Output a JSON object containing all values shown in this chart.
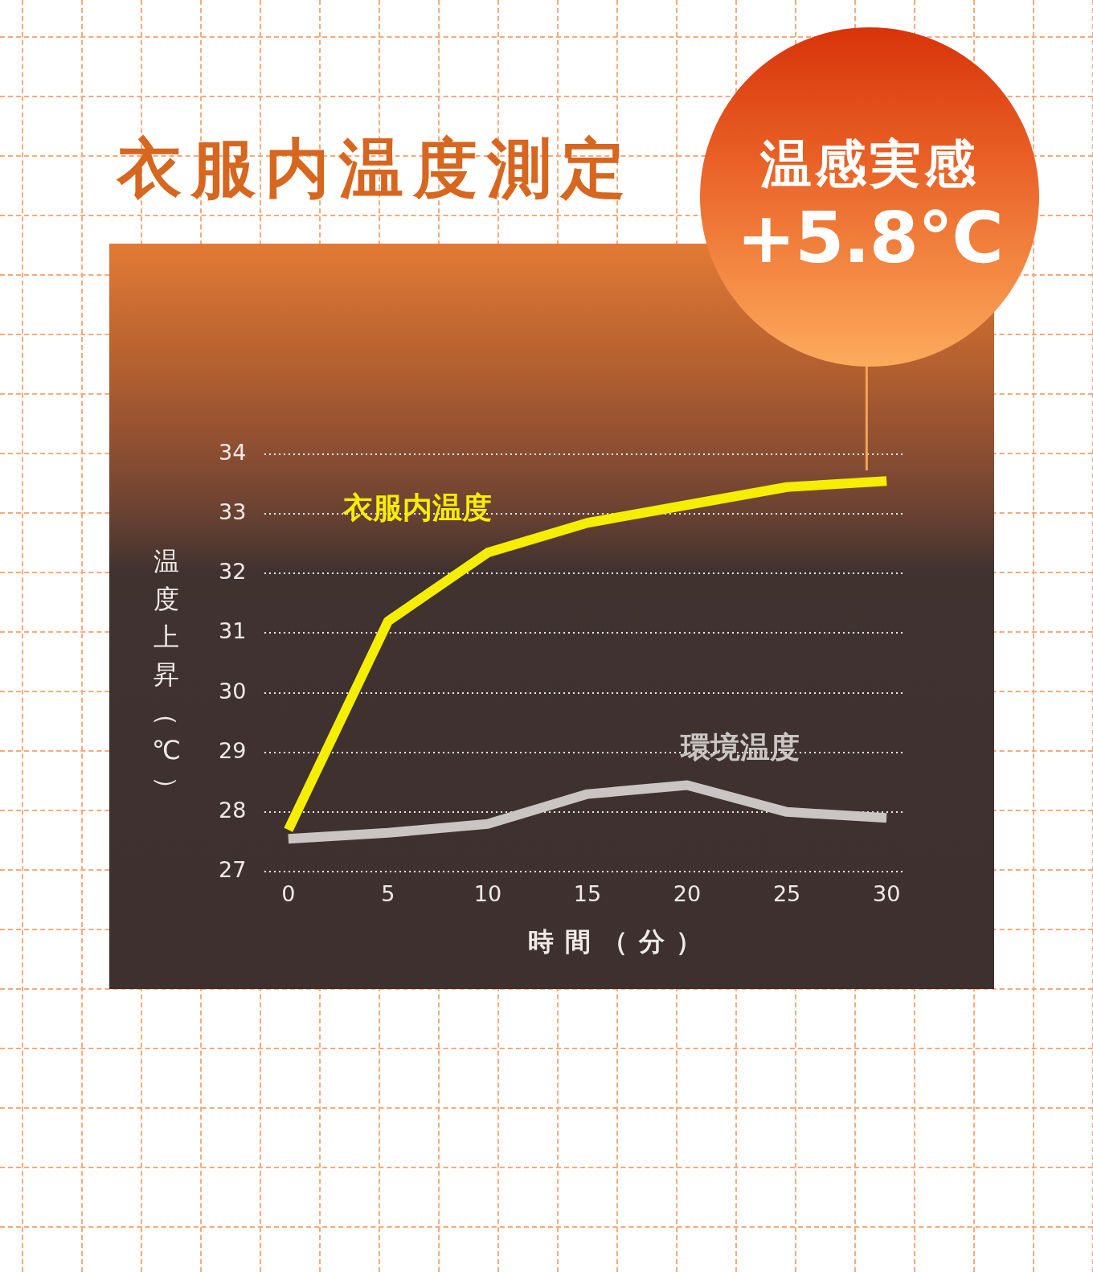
{
  "chart_data": {
    "type": "line",
    "title": "衣服内温度測定",
    "xlabel": "時間（分）",
    "ylabel": "温度上昇（℃）",
    "annotations": [
      {
        "text": "温感実感 +5.8℃",
        "x": 29,
        "y": 33.5
      }
    ],
    "x": [
      0,
      5,
      10,
      15,
      20,
      25,
      30
    ],
    "series": [
      {
        "name": "衣服内温度",
        "color": "#f5ee00",
        "values": [
          27.7,
          31.2,
          32.35,
          32.85,
          33.15,
          33.45,
          33.55
        ]
      },
      {
        "name": "環境温度",
        "color": "#c9c5c3",
        "values": [
          27.55,
          27.65,
          27.8,
          28.3,
          28.45,
          28.0,
          27.9
        ]
      }
    ],
    "xlim": [
      -1.2,
      30.8
    ],
    "ylim": [
      27,
      34
    ],
    "xticks": [
      0,
      5,
      10,
      15,
      20,
      25,
      30
    ],
    "yticks": [
      27,
      28,
      29,
      30,
      31,
      32,
      33,
      34
    ],
    "grid": "y",
    "line_style": "solid"
  }
}
